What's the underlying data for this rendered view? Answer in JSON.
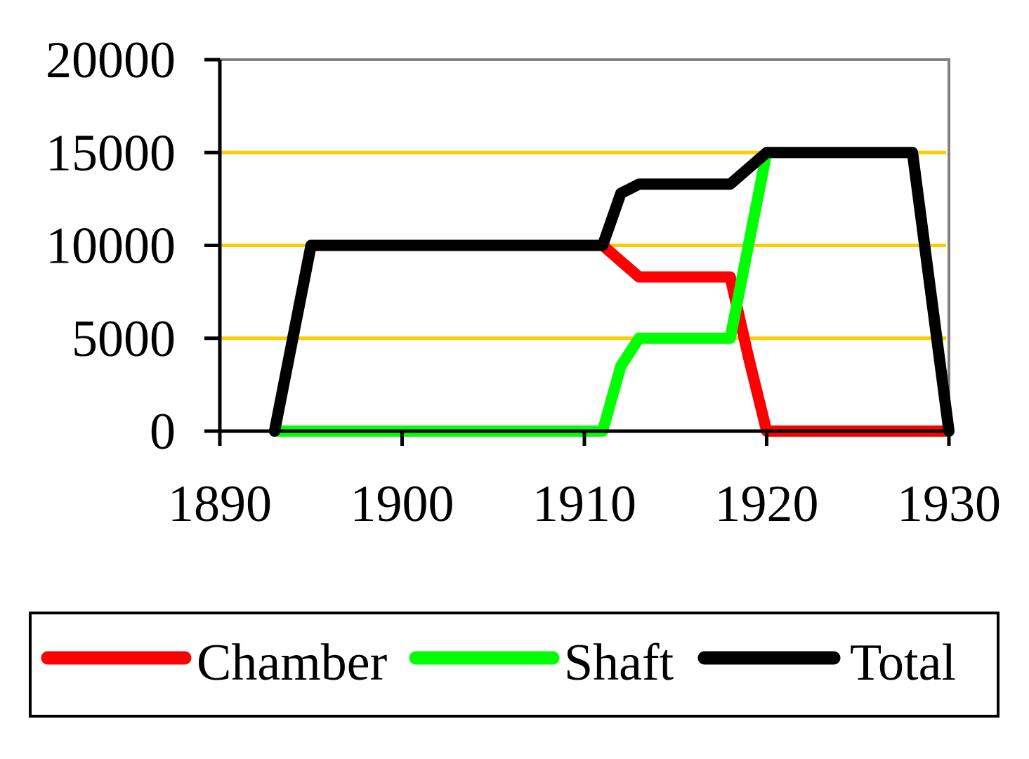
{
  "chart_data": {
    "type": "line",
    "x_ticks": [
      1890,
      1900,
      1910,
      1920,
      1930
    ],
    "x_tick_labels": [
      "1890",
      "1900",
      "1910",
      "1920",
      "1930"
    ],
    "y_ticks": [
      0,
      5000,
      10000,
      15000,
      20000
    ],
    "y_tick_labels": [
      "0",
      "5000",
      "10000",
      "15000",
      "20000"
    ],
    "xlim": [
      1890,
      1930
    ],
    "ylim": [
      0,
      20000
    ],
    "grid": "horizontal",
    "legend_position": "bottom",
    "series": [
      {
        "name": "Chamber",
        "color": "#ff0000",
        "points": [
          [
            1893,
            0
          ],
          [
            1895,
            10000
          ],
          [
            1911,
            10000
          ],
          [
            1913,
            8300
          ],
          [
            1918,
            8300
          ],
          [
            1919,
            4000
          ],
          [
            1920,
            0
          ],
          [
            1930,
            0
          ]
        ]
      },
      {
        "name": "Shaft",
        "color": "#00ff00",
        "points": [
          [
            1893,
            0
          ],
          [
            1911,
            0
          ],
          [
            1912,
            3500
          ],
          [
            1913,
            5000
          ],
          [
            1918,
            5000
          ],
          [
            1919,
            10000
          ],
          [
            1920,
            15000
          ],
          [
            1928,
            15000
          ],
          [
            1930,
            0
          ]
        ]
      },
      {
        "name": "Total",
        "color": "#000000",
        "points": [
          [
            1893,
            0
          ],
          [
            1895,
            10000
          ],
          [
            1911,
            10000
          ],
          [
            1912,
            12800
          ],
          [
            1913,
            13300
          ],
          [
            1918,
            13300
          ],
          [
            1920,
            15000
          ],
          [
            1928,
            15000
          ],
          [
            1930,
            0
          ]
        ]
      }
    ]
  }
}
